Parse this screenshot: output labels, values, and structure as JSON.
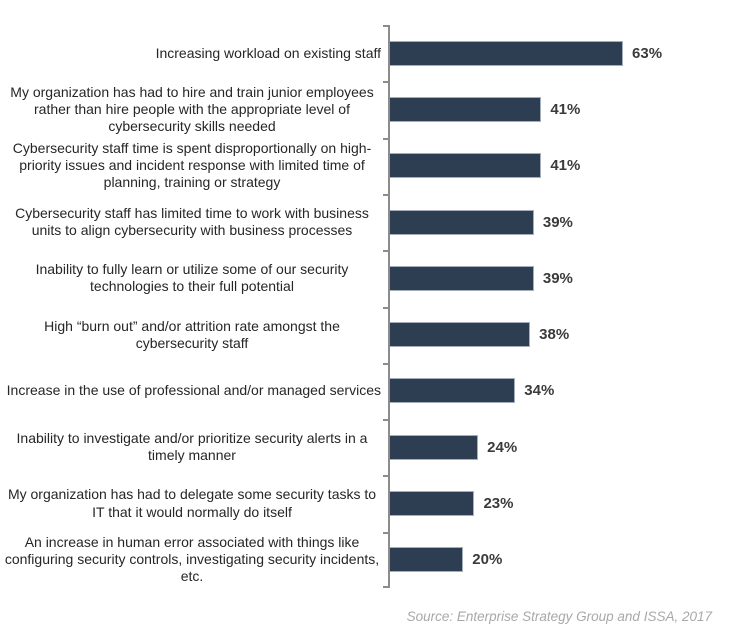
{
  "chart_data": {
    "type": "bar",
    "orientation": "horizontal",
    "title": "",
    "xlabel": "",
    "ylabel": "",
    "xlim": [
      0,
      70
    ],
    "grid": false,
    "legend": false,
    "categories": [
      "Increasing workload on existing staff",
      "My organization has had to hire and train junior employees rather than hire people with the appropriate level of cybersecurity skills needed",
      "Cybersecurity staff time is spent disproportionally on high-priority issues and incident response with limited time of planning, training or strategy",
      "Cybersecurity staff has limited time to work with business units to align cybersecurity with business processes",
      "Inability to fully learn or utilize some of our security technologies to their full potential",
      "High “burn out” and/or attrition rate amongst the cybersecurity staff",
      "Increase in the use of professional and/or managed services",
      "Inability to investigate and/or prioritize security alerts in a timely manner",
      "My organization has had to delegate some security tasks to IT that it would normally do itself",
      "An increase in human error associated with things like configuring security controls, investigating security incidents, etc."
    ],
    "values": [
      63,
      41,
      41,
      39,
      39,
      38,
      34,
      24,
      23,
      20
    ],
    "value_labels": [
      "63%",
      "41%",
      "41%",
      "39%",
      "39%",
      "38%",
      "34%",
      "24%",
      "23%",
      "20%"
    ]
  },
  "colors": {
    "bar_fill": "#2d3e52",
    "bar_border": "#a4aeba",
    "axis": "#8c8c8c",
    "category_text": "#262626",
    "value_text": "#3b3b3b",
    "source_text": "#a8a8a8"
  },
  "footer": {
    "source_note": "Source: Enterprise Strategy Group and ISSA, 2017"
  }
}
